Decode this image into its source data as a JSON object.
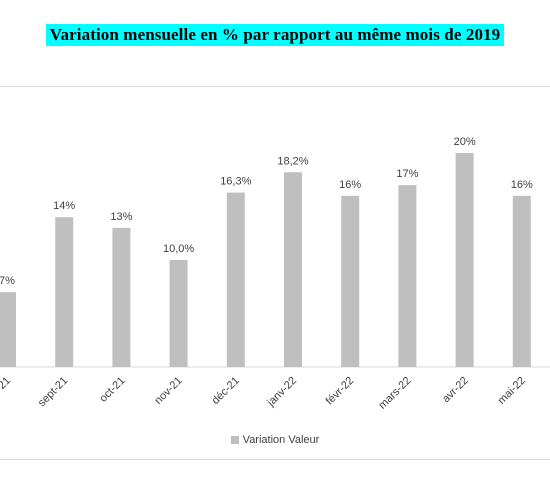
{
  "chart_data": {
    "type": "bar",
    "title": "Variation mensuelle en % par rapport au même mois de 2019",
    "categories": [
      "",
      "sept-21",
      "oct-21",
      "nov-21",
      "déc-21",
      "janv-22",
      "févr-22",
      "mars-22",
      "avr-22",
      "mai-22"
    ],
    "tick_labels": [
      "21",
      "sept-21",
      "oct-21",
      "nov-21",
      "déc-21",
      "janv-22",
      "févr-22",
      "mars-22",
      "avr-22",
      "mai-22"
    ],
    "series": [
      {
        "name": "Variation Valeur",
        "values": [
          7,
          14,
          13,
          10.0,
          16.3,
          18.2,
          16,
          17,
          20,
          16
        ],
        "data_labels": [
          "7%",
          "14%",
          "13%",
          "10,0%",
          "16,3%",
          "18,2%",
          "16%",
          "17%",
          "20%",
          "16%"
        ]
      }
    ],
    "ylim": [
      0,
      25
    ],
    "grid": false,
    "legend_position": "bottom",
    "colors": {
      "bar": "#bfbfbf",
      "title_bg": "#00ffff"
    }
  }
}
